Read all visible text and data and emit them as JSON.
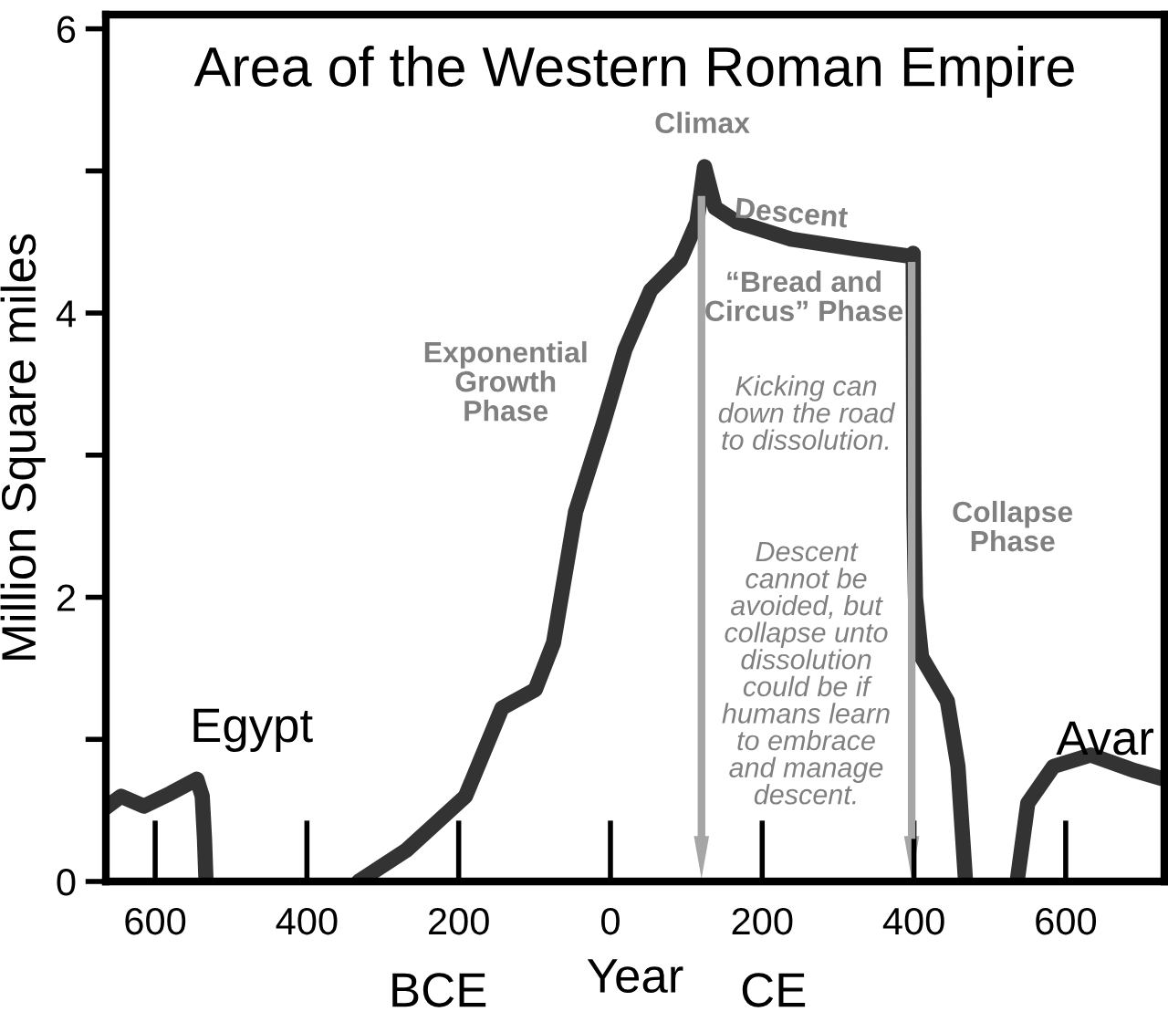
{
  "chart_data": {
    "type": "line",
    "title": "Area of the Western Roman Empire",
    "xlabel": "Year",
    "ylabel": "Million Square miles",
    "xlim": [
      -665,
      730
    ],
    "ylim": [
      0,
      6.1
    ],
    "xticks": [
      {
        "value": -600,
        "label": "600"
      },
      {
        "value": -400,
        "label": "400"
      },
      {
        "value": -200,
        "label": "200"
      },
      0,
      200,
      400,
      600
    ],
    "yticks": [
      0,
      {
        "value": 1,
        "label": null
      },
      2,
      {
        "value": 3,
        "label": null
      },
      4,
      {
        "value": 5,
        "label": null
      },
      6
    ],
    "grid": false,
    "marker": "none",
    "line_style": "solid",
    "series": [
      {
        "color": "#333333",
        "x": [
          -665,
          -645,
          -615,
          -580,
          -545,
          -538,
          -535,
          -533
        ],
        "values": [
          0.52,
          0.6,
          0.53,
          0.62,
          0.72,
          0.6,
          0.3,
          0
        ]
      },
      {
        "color": "#333333",
        "x": [
          -332,
          -269,
          -191,
          -167,
          -143,
          -99,
          -75,
          -46,
          -10,
          19,
          53,
          92,
          114,
          124,
          138,
          167,
          238,
          325,
          395,
          399,
          400,
          402,
          410,
          444,
          458,
          468
        ],
        "values": [
          0,
          0.22,
          0.6,
          0.91,
          1.22,
          1.35,
          1.68,
          2.6,
          3.21,
          3.74,
          4.16,
          4.37,
          4.64,
          5.03,
          4.74,
          4.64,
          4.52,
          4.45,
          4.4,
          4.42,
          2.6,
          2.0,
          1.58,
          1.27,
          0.81,
          0
        ]
      },
      {
        "color": "#333333",
        "x": [
          536,
          550,
          584,
          633,
          691,
          730
        ],
        "values": [
          0,
          0.55,
          0.81,
          0.89,
          0.78,
          0.72
        ]
      }
    ],
    "ref_lines": [
      {
        "axis": "x",
        "value": 120,
        "color": "#a6a6a6"
      },
      {
        "axis": "x",
        "value": 397,
        "color": "#a6a6a6"
      }
    ],
    "annotations": [
      "Egypt",
      "Avar",
      "Climax",
      "Descent",
      "“Bread and\nCircus” Phase",
      "Exponential\nGrowth\nPhase",
      "Collapse\nPhase",
      "Kicking can\ndown the road\nto dissolution.",
      "Descent\ncannot be\navoided, but\ncollapse unto\ndissolution\ncould be if\nhumans learn\nto embrace\nand manage\ndescent.",
      "BCE",
      "CE"
    ]
  }
}
